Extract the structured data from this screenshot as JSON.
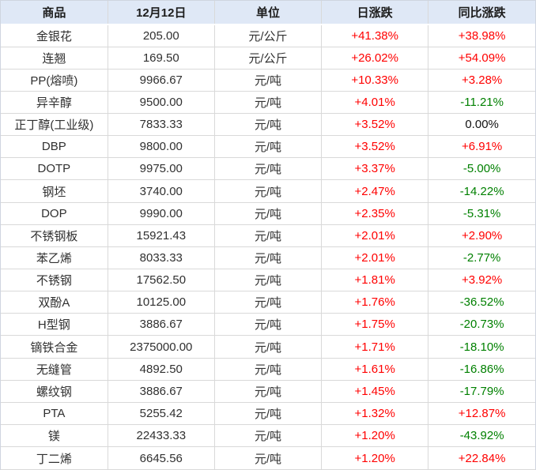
{
  "colors": {
    "up": "#ff0000",
    "down": "#008000",
    "flat": "#111111",
    "header_bg": "#dfe8f6",
    "border": "#d9d9d9"
  },
  "chart_data": {
    "type": "table",
    "columns": [
      "商品",
      "12月12日",
      "单位",
      "日涨跌",
      "同比涨跌"
    ],
    "rows": [
      {
        "name": "金银花",
        "price": "205.00",
        "unit": "元/公斤",
        "daily_change": "+41.38%",
        "yoy_change": "+38.98%"
      },
      {
        "name": "连翘",
        "price": "169.50",
        "unit": "元/公斤",
        "daily_change": "+26.02%",
        "yoy_change": "+54.09%"
      },
      {
        "name": "PP(熔喷)",
        "price": "9966.67",
        "unit": "元/吨",
        "daily_change": "+10.33%",
        "yoy_change": "+3.28%"
      },
      {
        "name": "异辛醇",
        "price": "9500.00",
        "unit": "元/吨",
        "daily_change": "+4.01%",
        "yoy_change": "-11.21%"
      },
      {
        "name": "正丁醇(工业级)",
        "price": "7833.33",
        "unit": "元/吨",
        "daily_change": "+3.52%",
        "yoy_change": "0.00%"
      },
      {
        "name": "DBP",
        "price": "9800.00",
        "unit": "元/吨",
        "daily_change": "+3.52%",
        "yoy_change": "+6.91%"
      },
      {
        "name": "DOTP",
        "price": "9975.00",
        "unit": "元/吨",
        "daily_change": "+3.37%",
        "yoy_change": "-5.00%"
      },
      {
        "name": "钢坯",
        "price": "3740.00",
        "unit": "元/吨",
        "daily_change": "+2.47%",
        "yoy_change": "-14.22%"
      },
      {
        "name": "DOP",
        "price": "9990.00",
        "unit": "元/吨",
        "daily_change": "+2.35%",
        "yoy_change": "-5.31%"
      },
      {
        "name": "不锈钢板",
        "price": "15921.43",
        "unit": "元/吨",
        "daily_change": "+2.01%",
        "yoy_change": "+2.90%"
      },
      {
        "name": "苯乙烯",
        "price": "8033.33",
        "unit": "元/吨",
        "daily_change": "+2.01%",
        "yoy_change": "-2.77%"
      },
      {
        "name": "不锈钢",
        "price": "17562.50",
        "unit": "元/吨",
        "daily_change": "+1.81%",
        "yoy_change": "+3.92%"
      },
      {
        "name": "双酚A",
        "price": "10125.00",
        "unit": "元/吨",
        "daily_change": "+1.76%",
        "yoy_change": "-36.52%"
      },
      {
        "name": "H型钢",
        "price": "3886.67",
        "unit": "元/吨",
        "daily_change": "+1.75%",
        "yoy_change": "-20.73%"
      },
      {
        "name": "镝铁合金",
        "price": "2375000.00",
        "unit": "元/吨",
        "daily_change": "+1.71%",
        "yoy_change": "-18.10%"
      },
      {
        "name": "无缝管",
        "price": "4892.50",
        "unit": "元/吨",
        "daily_change": "+1.61%",
        "yoy_change": "-16.86%"
      },
      {
        "name": "螺纹钢",
        "price": "3886.67",
        "unit": "元/吨",
        "daily_change": "+1.45%",
        "yoy_change": "-17.79%"
      },
      {
        "name": "PTA",
        "price": "5255.42",
        "unit": "元/吨",
        "daily_change": "+1.32%",
        "yoy_change": "+12.87%"
      },
      {
        "name": "镁",
        "price": "22433.33",
        "unit": "元/吨",
        "daily_change": "+1.20%",
        "yoy_change": "-43.92%"
      },
      {
        "name": "丁二烯",
        "price": "6645.56",
        "unit": "元/吨",
        "daily_change": "+1.20%",
        "yoy_change": "+22.84%"
      }
    ]
  }
}
